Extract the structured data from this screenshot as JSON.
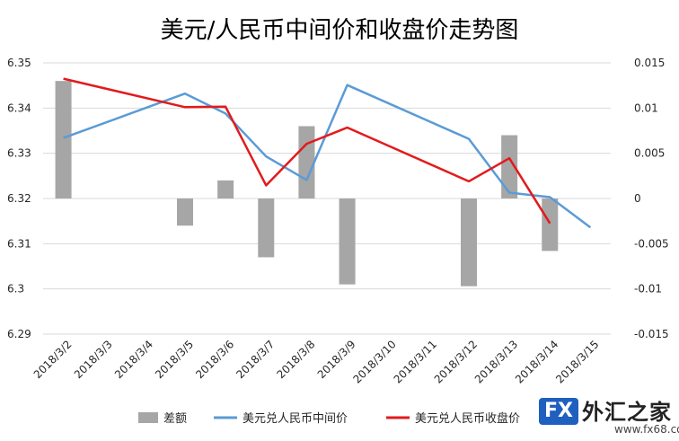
{
  "chart_data": {
    "type": "bar+line",
    "title": "美元/人民币中间价和收盘价走势图",
    "categories": [
      "2018/3/2",
      "2018/3/3",
      "2018/3/4",
      "2018/3/5",
      "2018/3/6",
      "2018/3/7",
      "2018/3/8",
      "2018/3/9",
      "2018/3/10",
      "2018/3/11",
      "2018/3/12",
      "2018/3/13",
      "2018/3/14",
      "2018/3/15"
    ],
    "y_left": {
      "ylim": [
        6.29,
        6.35
      ],
      "ticks": [
        "6.29",
        "6.3",
        "6.31",
        "6.32",
        "6.33",
        "6.34",
        "6.35"
      ]
    },
    "y_right": {
      "ylim": [
        -0.015,
        0.015
      ],
      "ticks": [
        "-0.015",
        "-0.01",
        "-0.005",
        "0",
        "0.005",
        "0.01",
        "0.015"
      ]
    },
    "series": [
      {
        "name": "差额",
        "kind": "bar",
        "axis": "right",
        "values": [
          0.013,
          null,
          null,
          -0.003,
          0.002,
          -0.0065,
          0.008,
          -0.0095,
          null,
          null,
          -0.0097,
          0.007,
          -0.0058,
          null
        ]
      },
      {
        "name": "美元兑人民币中间价",
        "kind": "line",
        "axis": "left",
        "values": [
          6.3334,
          null,
          null,
          6.3432,
          6.3388,
          6.3293,
          6.3241,
          6.3451,
          null,
          null,
          6.3332,
          6.3213,
          6.3203,
          6.3136
        ]
      },
      {
        "name": "美元兑人民币收盘价",
        "kind": "line",
        "axis": "left",
        "values": [
          6.3465,
          null,
          null,
          6.3402,
          6.3403,
          6.3229,
          6.3321,
          6.3357,
          null,
          null,
          6.3238,
          6.3289,
          6.3145,
          null
        ]
      }
    ],
    "grid": true,
    "legend": "bottom",
    "colors": {
      "bar": "#a6a6a6",
      "mid_line": "#5b9bd5",
      "close_line": "#e31a1c"
    }
  },
  "watermark": {
    "badge": "FX",
    "name": "外汇之家",
    "site": "www.fx68.com"
  }
}
